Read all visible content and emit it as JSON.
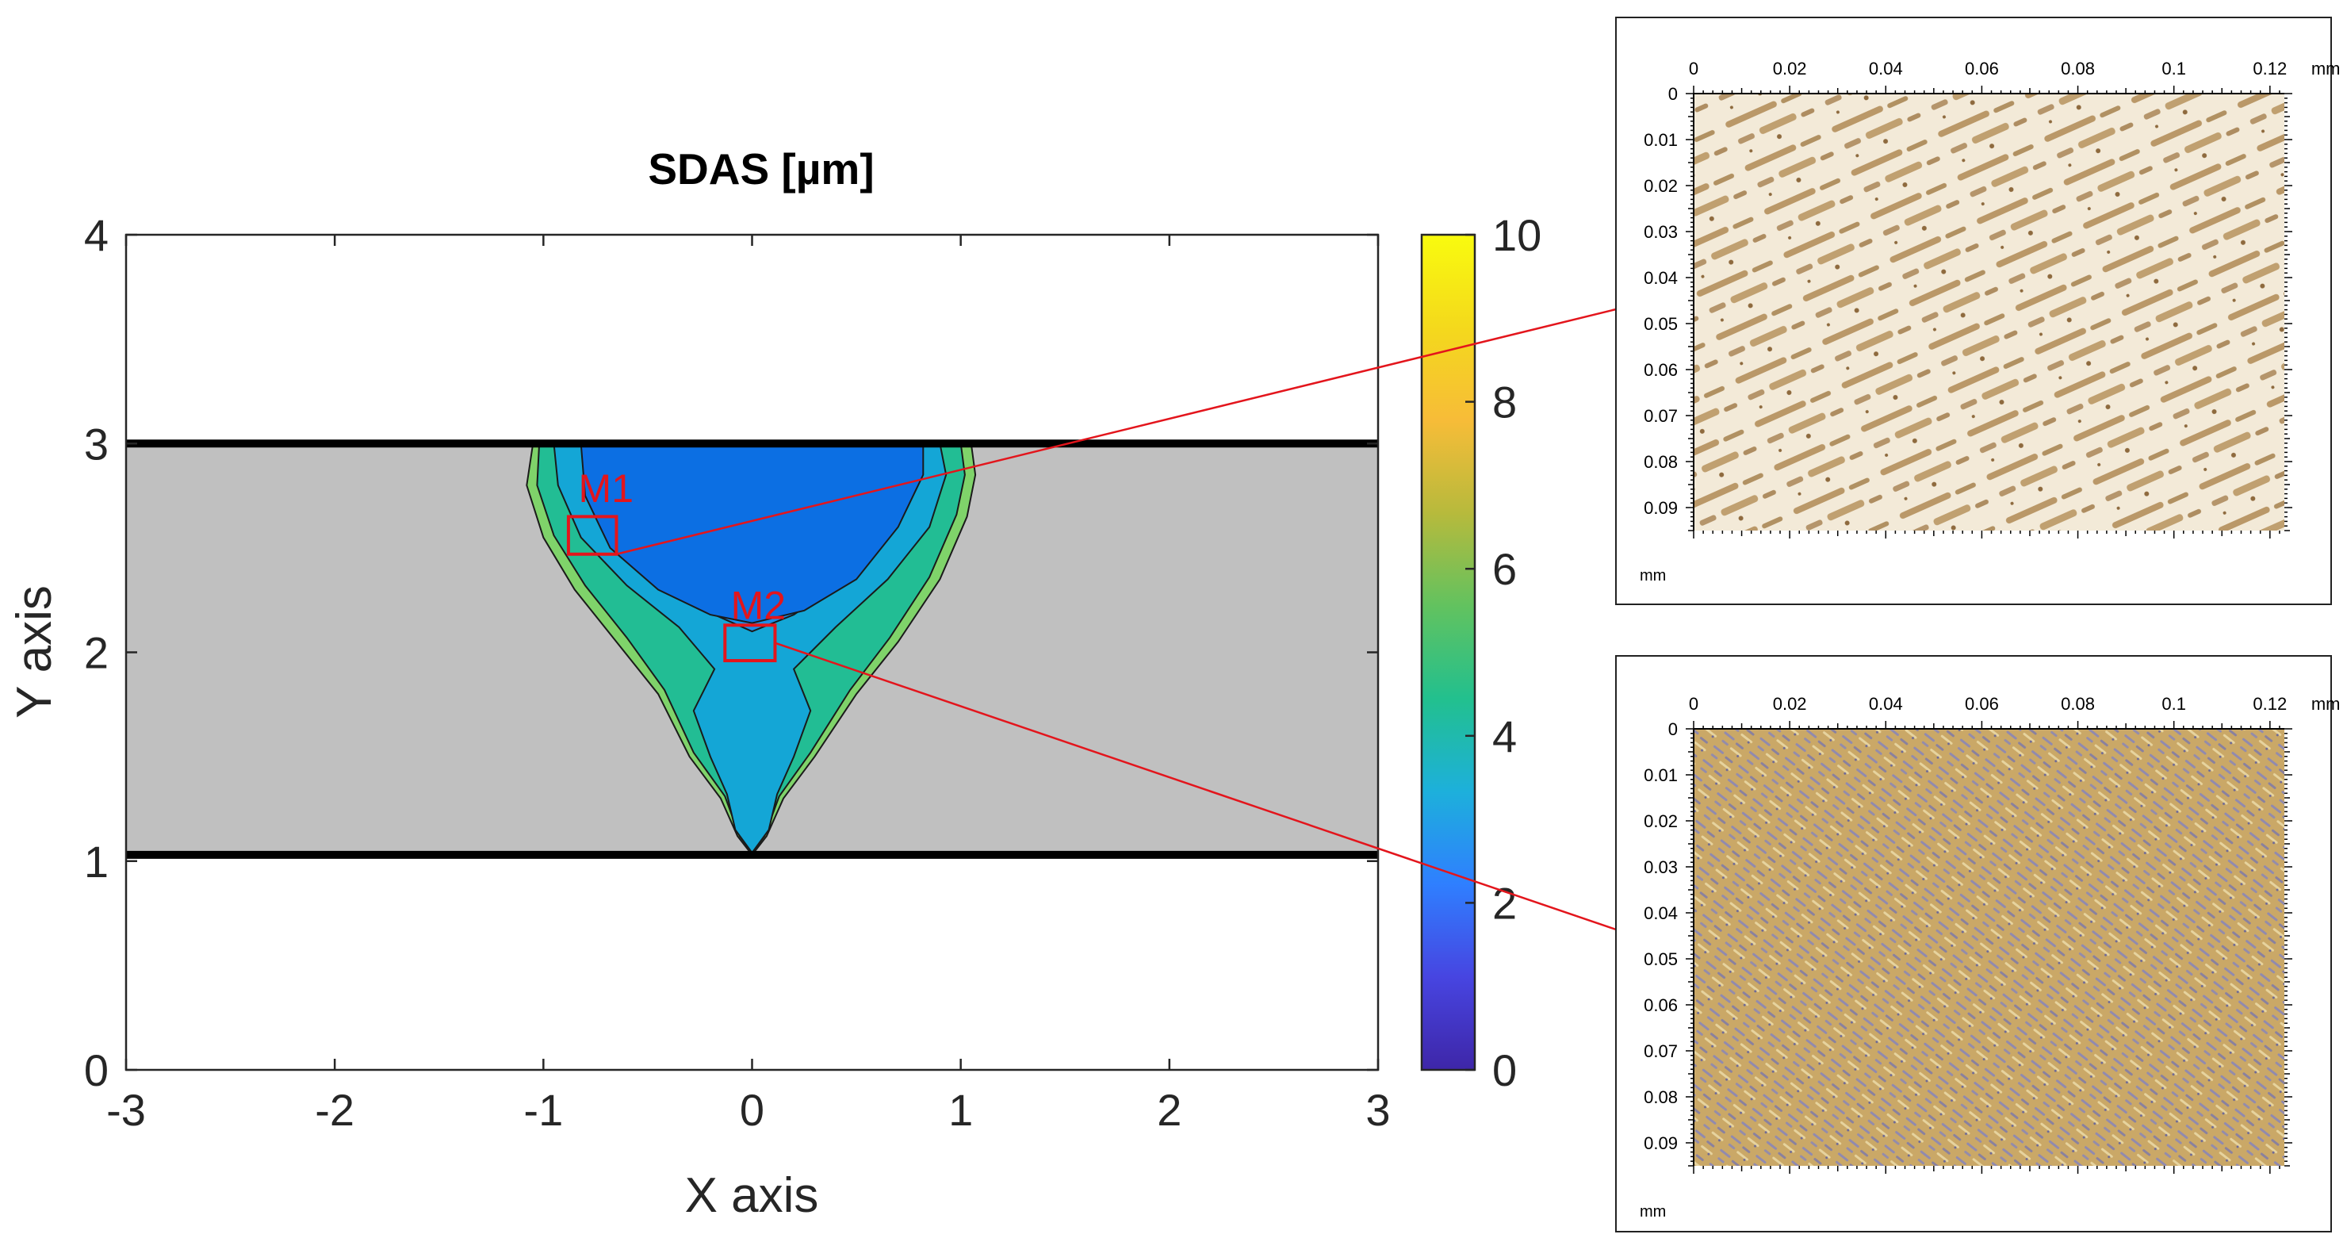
{
  "chart_data": {
    "type": "contour",
    "title": "SDAS [µm]",
    "xlabel": "X axis",
    "ylabel": "Y axis",
    "xlim": [
      -3,
      3
    ],
    "ylim": [
      0,
      4
    ],
    "xticks": [
      -3,
      -2,
      -1,
      0,
      1,
      2,
      3
    ],
    "yticks": [
      0,
      1,
      2,
      3,
      4
    ],
    "plate": {
      "y_top": 3.0,
      "y_bottom": 1.03,
      "x_left": -3.0,
      "x_right": 3.0,
      "fill": "#c0c0c0"
    },
    "colorbar": {
      "min": 0,
      "max": 10,
      "ticks": [
        0,
        2,
        4,
        6,
        8,
        10
      ],
      "colormap": [
        "#3e26a8",
        "#4745e1",
        "#2f7fff",
        "#1db0db",
        "#22c08e",
        "#62c25f",
        "#b7ba3c",
        "#f7bc38",
        "#f4d91c",
        "#f9fb0e"
      ]
    },
    "fusion_zone_contours": [
      {
        "level": "~6",
        "color": "#7fd36a",
        "points": [
          [
            -1.05,
            3.0
          ],
          [
            -1.08,
            2.8
          ],
          [
            -1.0,
            2.55
          ],
          [
            -0.85,
            2.3
          ],
          [
            -0.65,
            2.05
          ],
          [
            -0.45,
            1.8
          ],
          [
            -0.3,
            1.5
          ],
          [
            -0.15,
            1.3
          ],
          [
            -0.07,
            1.12
          ],
          [
            0.0,
            1.03
          ],
          [
            0.07,
            1.12
          ],
          [
            0.15,
            1.3
          ],
          [
            0.3,
            1.5
          ],
          [
            0.5,
            1.8
          ],
          [
            0.7,
            2.05
          ],
          [
            0.9,
            2.35
          ],
          [
            1.03,
            2.65
          ],
          [
            1.07,
            2.85
          ],
          [
            1.05,
            3.0
          ]
        ]
      },
      {
        "level": "~5",
        "color": "#22bd94",
        "points": [
          [
            -1.02,
            3.0
          ],
          [
            -1.03,
            2.8
          ],
          [
            -0.95,
            2.56
          ],
          [
            -0.8,
            2.32
          ],
          [
            -0.6,
            2.07
          ],
          [
            -0.42,
            1.82
          ],
          [
            -0.28,
            1.52
          ],
          [
            -0.13,
            1.31
          ],
          [
            -0.06,
            1.12
          ],
          [
            0.0,
            1.04
          ],
          [
            0.06,
            1.12
          ],
          [
            0.13,
            1.31
          ],
          [
            0.28,
            1.52
          ],
          [
            0.47,
            1.82
          ],
          [
            0.66,
            2.07
          ],
          [
            0.85,
            2.36
          ],
          [
            0.98,
            2.66
          ],
          [
            1.02,
            2.85
          ],
          [
            1.0,
            3.0
          ]
        ]
      },
      {
        "level": "~4",
        "color": "#14a6d6",
        "points": [
          [
            -0.95,
            3.0
          ],
          [
            -0.93,
            2.8
          ],
          [
            -0.82,
            2.55
          ],
          [
            -0.6,
            2.32
          ],
          [
            -0.35,
            2.12
          ],
          [
            -0.18,
            1.92
          ],
          [
            -0.28,
            1.72
          ],
          [
            -0.2,
            1.5
          ],
          [
            -0.12,
            1.32
          ],
          [
            -0.08,
            1.15
          ],
          [
            0.0,
            1.04
          ],
          [
            0.08,
            1.15
          ],
          [
            0.12,
            1.32
          ],
          [
            0.2,
            1.5
          ],
          [
            0.28,
            1.72
          ],
          [
            0.2,
            1.92
          ],
          [
            0.4,
            2.12
          ],
          [
            0.65,
            2.35
          ],
          [
            0.85,
            2.6
          ],
          [
            0.93,
            2.85
          ],
          [
            0.9,
            3.0
          ]
        ]
      },
      {
        "level": "~3",
        "color": "#1a8ee8",
        "points": [
          [
            -0.6,
            3.0
          ],
          [
            -0.55,
            2.68
          ],
          [
            -0.4,
            2.4
          ],
          [
            -0.18,
            2.18
          ],
          [
            0.0,
            2.1
          ],
          [
            0.2,
            2.18
          ],
          [
            0.45,
            2.35
          ],
          [
            0.63,
            2.6
          ],
          [
            0.7,
            2.85
          ],
          [
            0.65,
            3.0
          ]
        ]
      },
      {
        "level": "~2",
        "color": "#0c6fe3",
        "points": [
          [
            -0.82,
            3.0
          ],
          [
            -0.8,
            2.75
          ],
          [
            -0.68,
            2.5
          ],
          [
            -0.45,
            2.3
          ],
          [
            -0.2,
            2.18
          ],
          [
            0.0,
            2.14
          ],
          [
            0.25,
            2.2
          ],
          [
            0.5,
            2.35
          ],
          [
            0.7,
            2.6
          ],
          [
            0.82,
            2.85
          ],
          [
            0.82,
            3.0
          ]
        ]
      }
    ],
    "annotations": [
      {
        "text": "M1",
        "box_x": [
          -0.88,
          -0.65
        ],
        "box_y": [
          2.47,
          2.65
        ],
        "label_at": [
          -0.7,
          2.72
        ],
        "target": "micrograph_m1"
      },
      {
        "text": "M2",
        "box_x": [
          -0.13,
          0.11
        ],
        "box_y": [
          1.96,
          2.13
        ],
        "label_at": [
          0.03,
          2.16
        ],
        "target": "micrograph_m2"
      }
    ],
    "micrographs": [
      {
        "id": "micrograph_m1",
        "x_ticks": [
          "0",
          "0.02",
          "0.04",
          "0.06",
          "0.08",
          "0.1",
          "0.12"
        ],
        "x_unit": "mm",
        "y_ticks": [
          "0",
          "0.01",
          "0.02",
          "0.03",
          "0.04",
          "0.05",
          "0.06",
          "0.07",
          "0.08",
          "0.09"
        ],
        "y_unit": "mm",
        "style": "coarse"
      },
      {
        "id": "micrograph_m2",
        "x_ticks": [
          "0",
          "0.02",
          "0.04",
          "0.06",
          "0.08",
          "0.1",
          "0.12"
        ],
        "x_unit": "mm",
        "y_ticks": [
          "0",
          "0.01",
          "0.02",
          "0.03",
          "0.04",
          "0.05",
          "0.06",
          "0.07",
          "0.08",
          "0.09"
        ],
        "y_unit": "mm",
        "style": "fine"
      }
    ]
  }
}
